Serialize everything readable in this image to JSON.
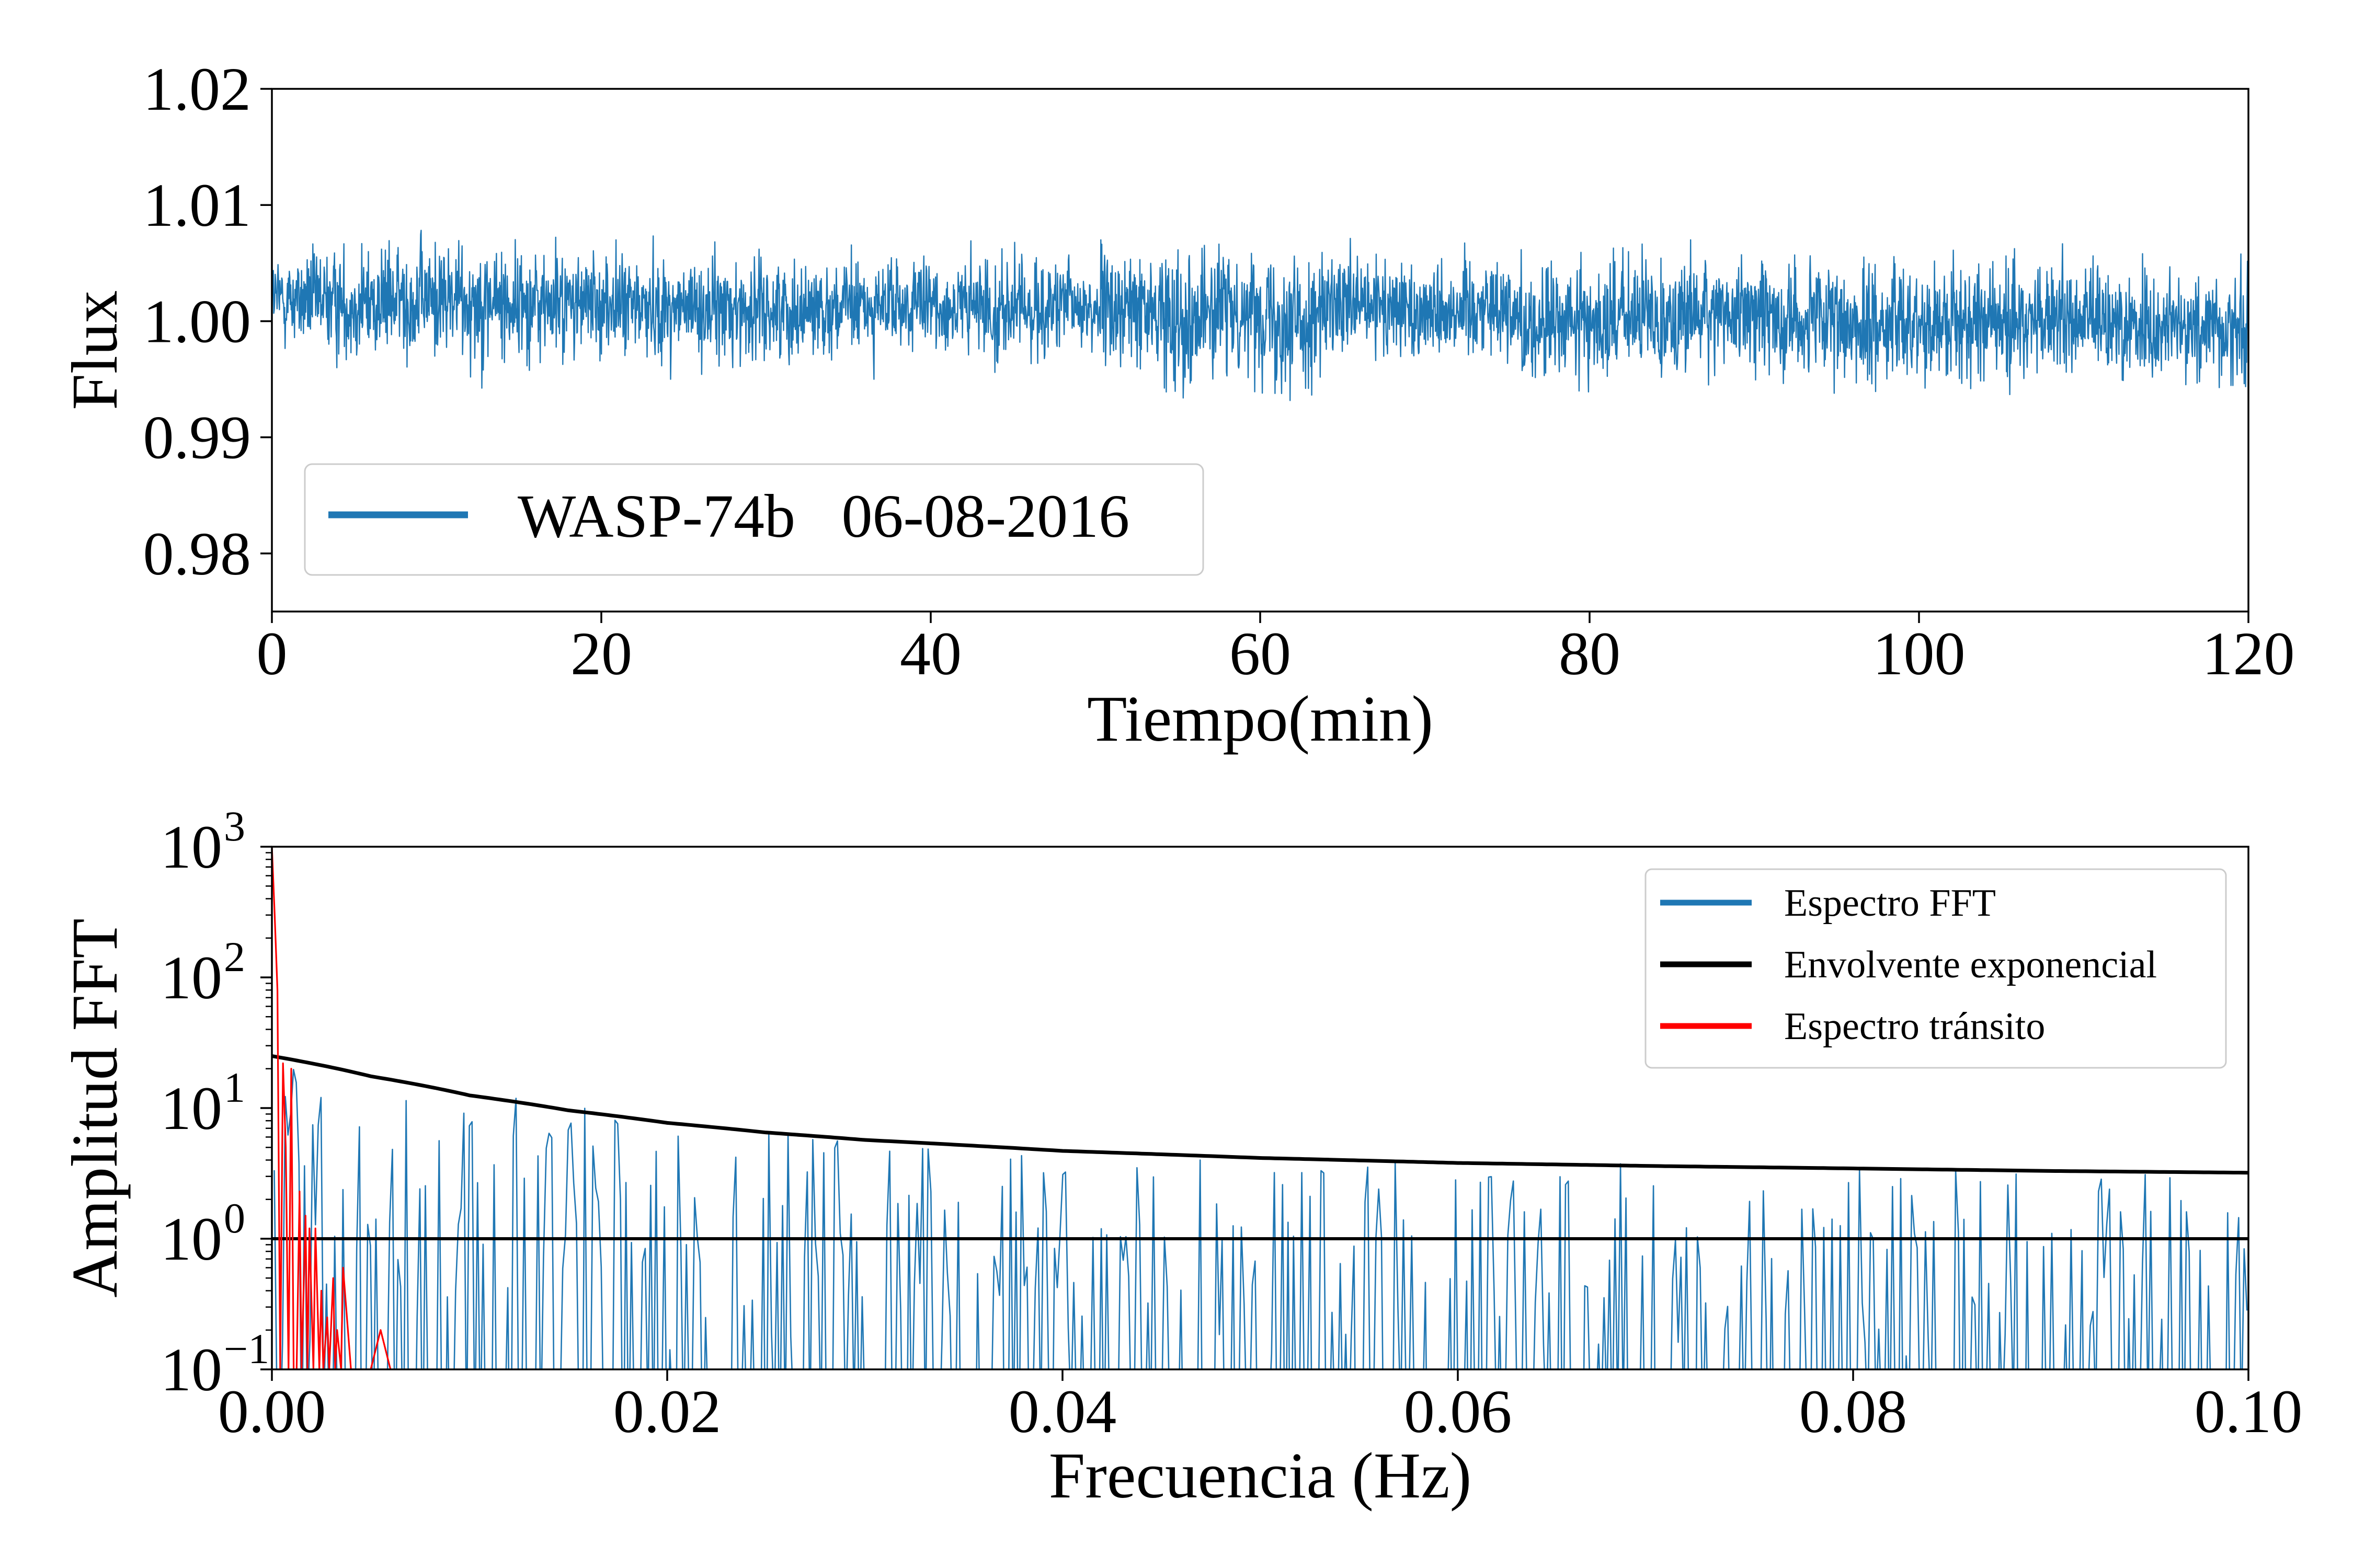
{
  "chart_data": [
    {
      "type": "line",
      "xlabel": "Tiempo(min)",
      "ylabel": "Flux",
      "xlim": [
        0,
        120
      ],
      "ylim": [
        0.975,
        1.02
      ],
      "xticks": [
        0,
        20,
        40,
        60,
        80,
        100,
        120
      ],
      "xtick_labels": [
        "0",
        "20",
        "40",
        "60",
        "80",
        "100",
        "120"
      ],
      "yticks": [
        0.98,
        0.99,
        1.0,
        1.01,
        1.02
      ],
      "ytick_labels": [
        "0.98",
        "0.99",
        "1.00",
        "1.01",
        "1.02"
      ],
      "grid": false,
      "legend": "lower-left",
      "series": [
        {
          "name": "WASP-74b   06-08-2016",
          "color": "#1f77b4",
          "x": [
            0,
            5,
            10,
            15,
            20,
            25,
            30,
            35,
            40,
            45,
            50,
            55,
            60,
            62,
            65,
            70,
            75,
            76,
            80,
            85,
            90,
            94,
            95,
            100,
            105,
            110,
            115,
            120
          ],
          "y": [
            1.002,
            1.0015,
            1.002,
            1.0015,
            1.0015,
            1.001,
            1.001,
            1.0012,
            1.0012,
            1.001,
            1.0012,
            1.0005,
            1.001,
            1.0,
            1.001,
            1.001,
            1.0015,
            0.9995,
            1.0,
            1.0005,
            1.0008,
            0.9998,
            0.9995,
            1.0,
            1.0,
            1.0,
            0.9995,
            0.9995
          ],
          "noise_amplitude": 0.0035,
          "envelope": {
            "x": [
              0,
              5,
              10,
              15,
              20,
              25,
              30,
              35,
              40,
              45,
              50,
              55,
              60,
              62,
              65,
              70,
              75,
              76,
              80,
              85,
              90,
              94,
              95,
              100,
              105,
              110,
              115,
              120
            ],
            "ymin": [
              0.996,
              0.994,
              0.995,
              0.993,
              0.995,
              0.995,
              0.994,
              0.995,
              0.995,
              0.994,
              0.994,
              0.99,
              0.993,
              0.989,
              0.994,
              0.994,
              0.994,
              0.991,
              0.99,
              0.992,
              0.993,
              0.991,
              0.989,
              0.993,
              0.993,
              0.993,
              0.992,
              0.99
            ],
            "ymax": [
              1.007,
              1.008,
              1.01,
              1.009,
              1.008,
              1.008,
              1.007,
              1.007,
              1.007,
              1.007,
              1.007,
              1.007,
              1.008,
              1.007,
              1.008,
              1.007,
              1.007,
              1.006,
              1.006,
              1.007,
              1.007,
              1.007,
              1.006,
              1.007,
              1.007,
              1.007,
              1.007,
              1.006
            ]
          }
        }
      ]
    },
    {
      "type": "line",
      "xlabel": "Frecuencia (Hz)",
      "ylabel": "Amplitud FFT",
      "xlim": [
        0,
        0.1
      ],
      "ylim": [
        0.1,
        1000
      ],
      "yscale": "log",
      "xticks": [
        0.0,
        0.02,
        0.04,
        0.06,
        0.08,
        0.1
      ],
      "xtick_labels": [
        "0.00",
        "0.02",
        "0.04",
        "0.06",
        "0.08",
        "0.10"
      ],
      "yticks": [
        0.1,
        1,
        10,
        100,
        1000
      ],
      "ytick_labels": [
        {
          "base": "10",
          "exp": "−1"
        },
        {
          "base": "10",
          "exp": "0"
        },
        {
          "base": "10",
          "exp": "1"
        },
        {
          "base": "10",
          "exp": "2"
        },
        {
          "base": "10",
          "exp": "3"
        }
      ],
      "grid": false,
      "legend": "upper-right",
      "series": [
        {
          "name": "Espectro FFT",
          "color": "#1f77b4",
          "x_step": 0.000139,
          "peak_envelope": {
            "x": [
              0.0,
              0.002,
              0.005,
              0.01,
              0.013,
              0.02,
              0.022,
              0.03,
              0.04,
              0.05,
              0.054,
              0.06,
              0.065,
              0.07,
              0.08,
              0.09,
              0.1
            ],
            "y": [
              22,
              18,
              12,
              11,
              15,
              6,
              8,
              6,
              4.5,
              4.0,
              5.0,
              4.0,
              4.5,
              3.8,
              3.5,
              3.2,
              3.0
            ]
          }
        },
        {
          "name": "Envolvente exponencial",
          "color": "#000000",
          "x": [
            0.0,
            0.005,
            0.01,
            0.015,
            0.02,
            0.025,
            0.03,
            0.04,
            0.05,
            0.06,
            0.07,
            0.08,
            0.09,
            0.1
          ],
          "y": [
            25,
            17.5,
            12.5,
            9.6,
            7.7,
            6.5,
            5.7,
            4.7,
            4.15,
            3.8,
            3.6,
            3.45,
            3.3,
            3.2
          ]
        },
        {
          "name": "",
          "color": "#000000",
          "x": [
            0.0,
            0.1
          ],
          "y": [
            1.0,
            1.0
          ]
        },
        {
          "name": "Espectro tránsito",
          "color": "#ff0000",
          "x": [
            0.0,
            0.00014,
            0.00028,
            0.00042,
            0.00056,
            0.0007,
            0.00084,
            0.00098,
            0.0011,
            0.00125,
            0.0014,
            0.0015,
            0.0017,
            0.0018,
            0.0019,
            0.0021,
            0.0022,
            0.0024,
            0.0025,
            0.0026,
            0.0028,
            0.0029,
            0.0031,
            0.0032,
            0.0033,
            0.0035,
            0.0036,
            0.004,
            0.0045,
            0.005,
            0.0055,
            0.006
          ],
          "y": [
            1000,
            300,
            80,
            0.1,
            22,
            5,
            0.1,
            20,
            0.1,
            0.1,
            2.3,
            0.1,
            1.5,
            0.1,
            1.2,
            0.1,
            1.2,
            0.1,
            0.4,
            0.1,
            0.25,
            0.1,
            0.5,
            0.1,
            0.2,
            0.1,
            0.6,
            0.1,
            0.1,
            0.1,
            0.2,
            0.1
          ]
        }
      ]
    }
  ]
}
